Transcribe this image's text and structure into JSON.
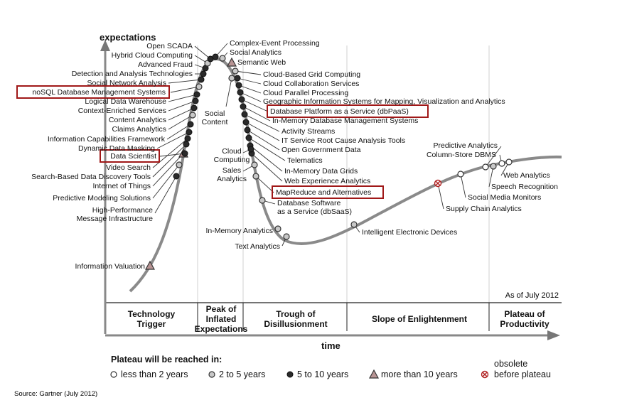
{
  "chart_data": {
    "type": "scatter",
    "title": "",
    "ylabel": "expectations",
    "xlabel": "time",
    "as_of": "As of July 2012",
    "source": "Source: Gartner (July 2012)",
    "phases": [
      {
        "name": "Technology Trigger",
        "lines": [
          "Technology",
          "Trigger"
        ]
      },
      {
        "name": "Peak of Inflated Expectations",
        "lines": [
          "Peak of",
          "Inflated",
          "Expectations"
        ]
      },
      {
        "name": "Trough of Disillusionment",
        "lines": [
          "Trough of",
          "Disillusionment"
        ]
      },
      {
        "name": "Slope of Enlightenment",
        "lines": [
          "Slope of Enlightenment"
        ]
      },
      {
        "name": "Plateau of Productivity",
        "lines": [
          "Plateau of",
          "Productivity"
        ]
      }
    ],
    "legend": {
      "title": "Plateau will be reached in:",
      "items": [
        {
          "key": "lt2",
          "label": "less than 2 years"
        },
        {
          "key": "2to5",
          "label": "2 to 5 years"
        },
        {
          "key": "5to10",
          "label": "5 to 10 years"
        },
        {
          "key": "gt10",
          "label": "more than 10 years"
        },
        {
          "key": "obsolete",
          "label": "obsolete before plateau"
        }
      ]
    },
    "highlighted": [
      "noSQL Database Management Systems",
      "Data Scientist",
      "Database Platform as a Service (dbPaaS)",
      "MapReduce and Alternatives"
    ],
    "series": [
      {
        "name": "Information Valuation",
        "plateau": "gt10",
        "phase": "Technology Trigger"
      },
      {
        "name": "High-Performance Message Infrastructure",
        "plateau": "5to10",
        "phase": "Technology Trigger"
      },
      {
        "name": "Predictive Modeling Solutions",
        "plateau": "2to5",
        "phase": "Technology Trigger"
      },
      {
        "name": "Internet of Things",
        "plateau": "gt10",
        "phase": "Technology Trigger"
      },
      {
        "name": "Search-Based Data Discovery Tools",
        "plateau": "5to10",
        "phase": "Technology Trigger"
      },
      {
        "name": "Video Search",
        "plateau": "5to10",
        "phase": "Technology Trigger"
      },
      {
        "name": "Data Scientist",
        "plateau": "5to10",
        "phase": "Technology Trigger"
      },
      {
        "name": "Dynamic Data Masking",
        "plateau": "5to10",
        "phase": "Technology Trigger"
      },
      {
        "name": "Information Capabilities Framework",
        "plateau": "5to10",
        "phase": "Technology Trigger"
      },
      {
        "name": "Claims Analytics",
        "plateau": "2to5",
        "phase": "Technology Trigger"
      },
      {
        "name": "Content Analytics",
        "plateau": "5to10",
        "phase": "Technology Trigger"
      },
      {
        "name": "Context-Enriched Services",
        "plateau": "5to10",
        "phase": "Technology Trigger"
      },
      {
        "name": "Logical Data Warehouse",
        "plateau": "5to10",
        "phase": "Technology Trigger"
      },
      {
        "name": "noSQL Database Management Systems",
        "plateau": "2to5",
        "phase": "Technology Trigger"
      },
      {
        "name": "Social Network Analysis",
        "plateau": "5to10",
        "phase": "Technology Trigger"
      },
      {
        "name": "Detection and Analysis Technologies",
        "plateau": "5to10",
        "phase": "Technology Trigger"
      },
      {
        "name": "Advanced Fraud",
        "plateau": "5to10",
        "phase": "Technology Trigger"
      },
      {
        "name": "Hybrid Cloud Computing",
        "plateau": "2to5",
        "phase": "Technology Trigger"
      },
      {
        "name": "Open SCADA",
        "plateau": "5to10",
        "phase": "Technology Trigger"
      },
      {
        "name": "Complex-Event Processing",
        "plateau": "5to10",
        "phase": "Peak of Inflated Expectations"
      },
      {
        "name": "Social Analytics",
        "plateau": "2to5",
        "phase": "Peak of Inflated Expectations"
      },
      {
        "name": "Semantic Web",
        "plateau": "gt10",
        "phase": "Peak of Inflated Expectations"
      },
      {
        "name": "Cloud-Based Grid Computing",
        "plateau": "2to5",
        "phase": "Peak of Inflated Expectations"
      },
      {
        "name": "Cloud Collaboration Services",
        "plateau": "5to10",
        "phase": "Peak of Inflated Expectations"
      },
      {
        "name": "Cloud Parallel Processing",
        "plateau": "5to10",
        "phase": "Peak of Inflated Expectations"
      },
      {
        "name": "Geographic Information Systems for Mapping, Visualization and Analytics",
        "plateau": "5to10",
        "phase": "Peak of Inflated Expectations"
      },
      {
        "name": "Database Platform as a Service (dbPaaS)",
        "plateau": "5to10",
        "phase": "Peak of Inflated Expectations"
      },
      {
        "name": "In-Memory Database Management Systems",
        "plateau": "5to10",
        "phase": "Peak of Inflated Expectations"
      },
      {
        "name": "Activity Streams",
        "plateau": "5to10",
        "phase": "Peak of Inflated Expectations"
      },
      {
        "name": "IT Service Root Cause Analysis Tools",
        "plateau": "5to10",
        "phase": "Peak of Inflated Expectations"
      },
      {
        "name": "Open Government Data",
        "plateau": "5to10",
        "phase": "Peak of Inflated Expectations"
      },
      {
        "name": "Telematics",
        "plateau": "5to10",
        "phase": "Peak of Inflated Expectations"
      },
      {
        "name": "In-Memory Data Grids",
        "plateau": "5to10",
        "phase": "Trough of Disillusionment"
      },
      {
        "name": "Web Experience Analytics",
        "plateau": "5to10",
        "phase": "Trough of Disillusionment"
      },
      {
        "name": "Social Content",
        "plateau": "2to5",
        "phase": "Peak of Inflated Expectations"
      },
      {
        "name": "Cloud Computing",
        "plateau": "5to10",
        "phase": "Trough of Disillusionment"
      },
      {
        "name": "Sales Analytics",
        "plateau": "2to5",
        "phase": "Trough of Disillusionment"
      },
      {
        "name": "MapReduce and Alternatives",
        "plateau": "2to5",
        "phase": "Trough of Disillusionment"
      },
      {
        "name": "Database Software as a Service (dbSaaS)",
        "plateau": "2to5",
        "phase": "Trough of Disillusionment"
      },
      {
        "name": "In-Memory Analytics",
        "plateau": "2to5",
        "phase": "Trough of Disillusionment"
      },
      {
        "name": "Text Analytics",
        "plateau": "2to5",
        "phase": "Trough of Disillusionment"
      },
      {
        "name": "Intelligent Electronic Devices",
        "plateau": "2to5",
        "phase": "Slope of Enlightenment"
      },
      {
        "name": "Supply Chain Analytics",
        "plateau": "obsolete",
        "phase": "Slope of Enlightenment"
      },
      {
        "name": "Social Media Monitors",
        "plateau": "lt2",
        "phase": "Slope of Enlightenment"
      },
      {
        "name": "Predictive Analytics",
        "plateau": "lt2",
        "phase": "Slope of Enlightenment"
      },
      {
        "name": "Speech Recognition",
        "plateau": "2to5",
        "phase": "Slope of Enlightenment"
      },
      {
        "name": "Column-Store DBMS",
        "plateau": "lt2",
        "phase": "Slope of Enlightenment"
      },
      {
        "name": "Web Analytics",
        "plateau": "lt2",
        "phase": "Slope of Enlightenment"
      }
    ]
  }
}
